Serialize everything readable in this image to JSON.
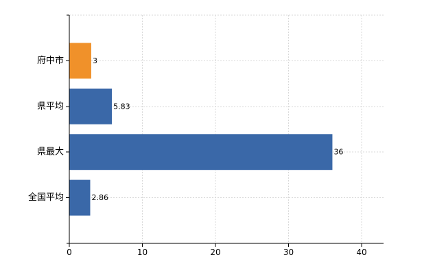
{
  "chart_data": {
    "type": "bar",
    "orientation": "horizontal",
    "categories": [
      "府中市",
      "県平均",
      "県最大",
      "全国平均"
    ],
    "values": [
      3,
      5.83,
      36,
      2.86
    ],
    "value_labels": [
      "3",
      "5.83",
      "36",
      "2.86"
    ],
    "highlight_index": 0,
    "highlight_color": "#f0912a",
    "bar_color": "#3a68a8",
    "xlim": [
      0,
      43
    ],
    "x_ticks": [
      0,
      10,
      20,
      30,
      40
    ],
    "x_tick_labels": [
      "0",
      "10",
      "20",
      "30",
      "40"
    ],
    "grid": true,
    "title": "",
    "xlabel": "",
    "ylabel": ""
  }
}
